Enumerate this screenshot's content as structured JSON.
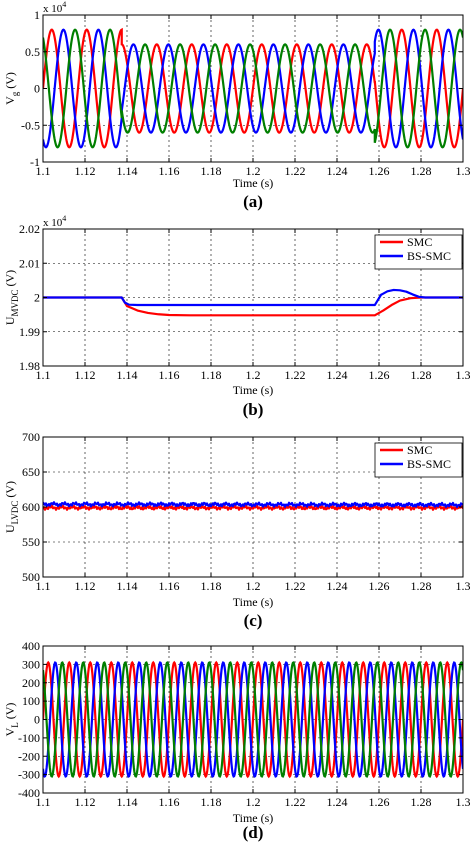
{
  "panels": [
    {
      "id": "a",
      "panel_label": "(a)",
      "ylabel_main": "V",
      "ylabel_sub": "g",
      "ylabel_unit": " (V)",
      "exponent": "x 10",
      "exponent_power": "4",
      "xlabel": "Time (s)",
      "legend": [],
      "chart_data": {
        "type": "line",
        "xlim": [
          1.1,
          1.3
        ],
        "ylim": [
          -1,
          1
        ],
        "xticks": [
          "1.1",
          "1.12",
          "1.14",
          "1.16",
          "1.18",
          "1.2",
          "1.22",
          "1.24",
          "1.26",
          "1.28",
          "1.3"
        ],
        "yticks": [
          "-1",
          "-0.5",
          "0",
          "0.5",
          "1"
        ],
        "yticks_values": [
          -1,
          -0.5,
          0,
          0.5,
          1
        ],
        "grid": true,
        "sinusoids": {
          "frequency_hz": 60,
          "phases_deg": [
            0,
            -120,
            120
          ],
          "segments": [
            {
              "x": [
                1.1,
                1.1375
              ],
              "amplitude": 0.8
            },
            {
              "x": [
                1.1375,
                1.258
              ],
              "amplitude": 0.6
            },
            {
              "x": [
                1.258,
                1.3
              ],
              "amplitude": 0.8
            }
          ]
        },
        "series_colors": [
          "#ff0000",
          "#0000ff",
          "#007f00"
        ]
      }
    },
    {
      "id": "b",
      "panel_label": "(b)",
      "ylabel_main": "U",
      "ylabel_sub": "MVDC",
      "ylabel_unit": " (V)",
      "exponent": "x 10",
      "exponent_power": "4",
      "xlabel": "Time (s)",
      "legend": [
        {
          "name": "SMC",
          "color": "#ff0000"
        },
        {
          "name": "BS-SMC",
          "color": "#0000ff"
        }
      ],
      "legend_position": "top-right",
      "chart_data": {
        "type": "line",
        "xlim": [
          1.1,
          1.3
        ],
        "ylim": [
          1.98,
          2.02
        ],
        "xticks": [
          "1.1",
          "1.12",
          "1.14",
          "1.16",
          "1.18",
          "1.2",
          "1.22",
          "1.24",
          "1.26",
          "1.28",
          "1.3"
        ],
        "yticks": [
          "1.98",
          "1.99",
          "2",
          "2.01",
          "2.02"
        ],
        "yticks_values": [
          1.98,
          1.99,
          2.0,
          2.01,
          2.02
        ],
        "grid": true,
        "series": [
          {
            "name": "SMC",
            "color": "#ff0000",
            "x": [
              1.1,
              1.1375,
              1.14,
              1.145,
              1.15,
              1.155,
              1.16,
              1.17,
              1.18,
              1.2,
              1.24,
              1.258,
              1.262,
              1.266,
              1.27,
              1.275,
              1.28,
              1.3
            ],
            "y": [
              2.0,
              2.0,
              1.9975,
              1.9962,
              1.9955,
              1.9951,
              1.9949,
              1.9948,
              1.9948,
              1.9948,
              1.9948,
              1.9948,
              1.9962,
              1.9978,
              1.9991,
              1.9998,
              2.0,
              2.0
            ]
          },
          {
            "name": "BS-SMC",
            "color": "#0000ff",
            "x": [
              1.1,
              1.1375,
              1.139,
              1.141,
              1.145,
              1.16,
              1.2,
              1.24,
              1.258,
              1.261,
              1.264,
              1.267,
              1.27,
              1.273,
              1.276,
              1.279,
              1.282,
              1.3
            ],
            "y": [
              2.0,
              2.0,
              1.9985,
              1.9979,
              1.9978,
              1.9978,
              1.9978,
              1.9978,
              1.9978,
              2.0008,
              2.0018,
              2.0022,
              2.0021,
              2.0017,
              2.0009,
              2.0002,
              2.0,
              2.0
            ]
          }
        ]
      }
    },
    {
      "id": "c",
      "panel_label": "(c)",
      "ylabel_main": "U",
      "ylabel_sub": "LVDC",
      "ylabel_unit": " (V)",
      "exponent": "",
      "exponent_power": "",
      "xlabel": "Time (s)",
      "legend": [
        {
          "name": "SMC",
          "color": "#ff0000"
        },
        {
          "name": "BS-SMC",
          "color": "#0000ff"
        }
      ],
      "legend_position": "top-right",
      "chart_data": {
        "type": "line",
        "xlim": [
          1.1,
          1.3
        ],
        "ylim": [
          500,
          700
        ],
        "xticks": [
          "1.1",
          "1.12",
          "1.14",
          "1.16",
          "1.18",
          "1.2",
          "1.22",
          "1.24",
          "1.26",
          "1.28",
          "1.3"
        ],
        "yticks": [
          "500",
          "550",
          "600",
          "650",
          "700"
        ],
        "yticks_values": [
          500,
          550,
          600,
          650,
          700
        ],
        "grid": true,
        "series": [
          {
            "name": "SMC",
            "color": "#ff0000",
            "x": [
              1.1,
              1.3
            ],
            "y": [
              599,
              599
            ],
            "ripple": 3
          },
          {
            "name": "BS-SMC",
            "color": "#0000ff",
            "x": [
              1.1,
              1.3
            ],
            "y": [
              604,
              603
            ],
            "ripple": 3
          }
        ]
      }
    },
    {
      "id": "d",
      "panel_label": "(d)",
      "ylabel_main": "V",
      "ylabel_sub": "L",
      "ylabel_unit": " (V)",
      "exponent": "",
      "exponent_power": "",
      "xlabel": "Time (s)",
      "legend": [],
      "chart_data": {
        "type": "line",
        "xlim": [
          1.1,
          1.3
        ],
        "ylim": [
          -400,
          400
        ],
        "xticks": [
          "1.1",
          "1.12",
          "1.14",
          "1.16",
          "1.18",
          "1.2",
          "1.22",
          "1.24",
          "1.26",
          "1.28",
          "1.3"
        ],
        "yticks": [
          "-400",
          "-300",
          "-200",
          "-100",
          "0",
          "100",
          "200",
          "300",
          "400"
        ],
        "yticks_values": [
          -400,
          -300,
          -200,
          -100,
          0,
          100,
          200,
          300,
          400
        ],
        "grid": true,
        "sinusoids": {
          "frequency_hz": 100,
          "phases_deg": [
            0,
            -120,
            120
          ],
          "segments": [
            {
              "x": [
                1.1,
                1.3
              ],
              "amplitude": 310
            }
          ]
        },
        "series_colors": [
          "#ff0000",
          "#0000ff",
          "#007f00"
        ]
      }
    }
  ]
}
